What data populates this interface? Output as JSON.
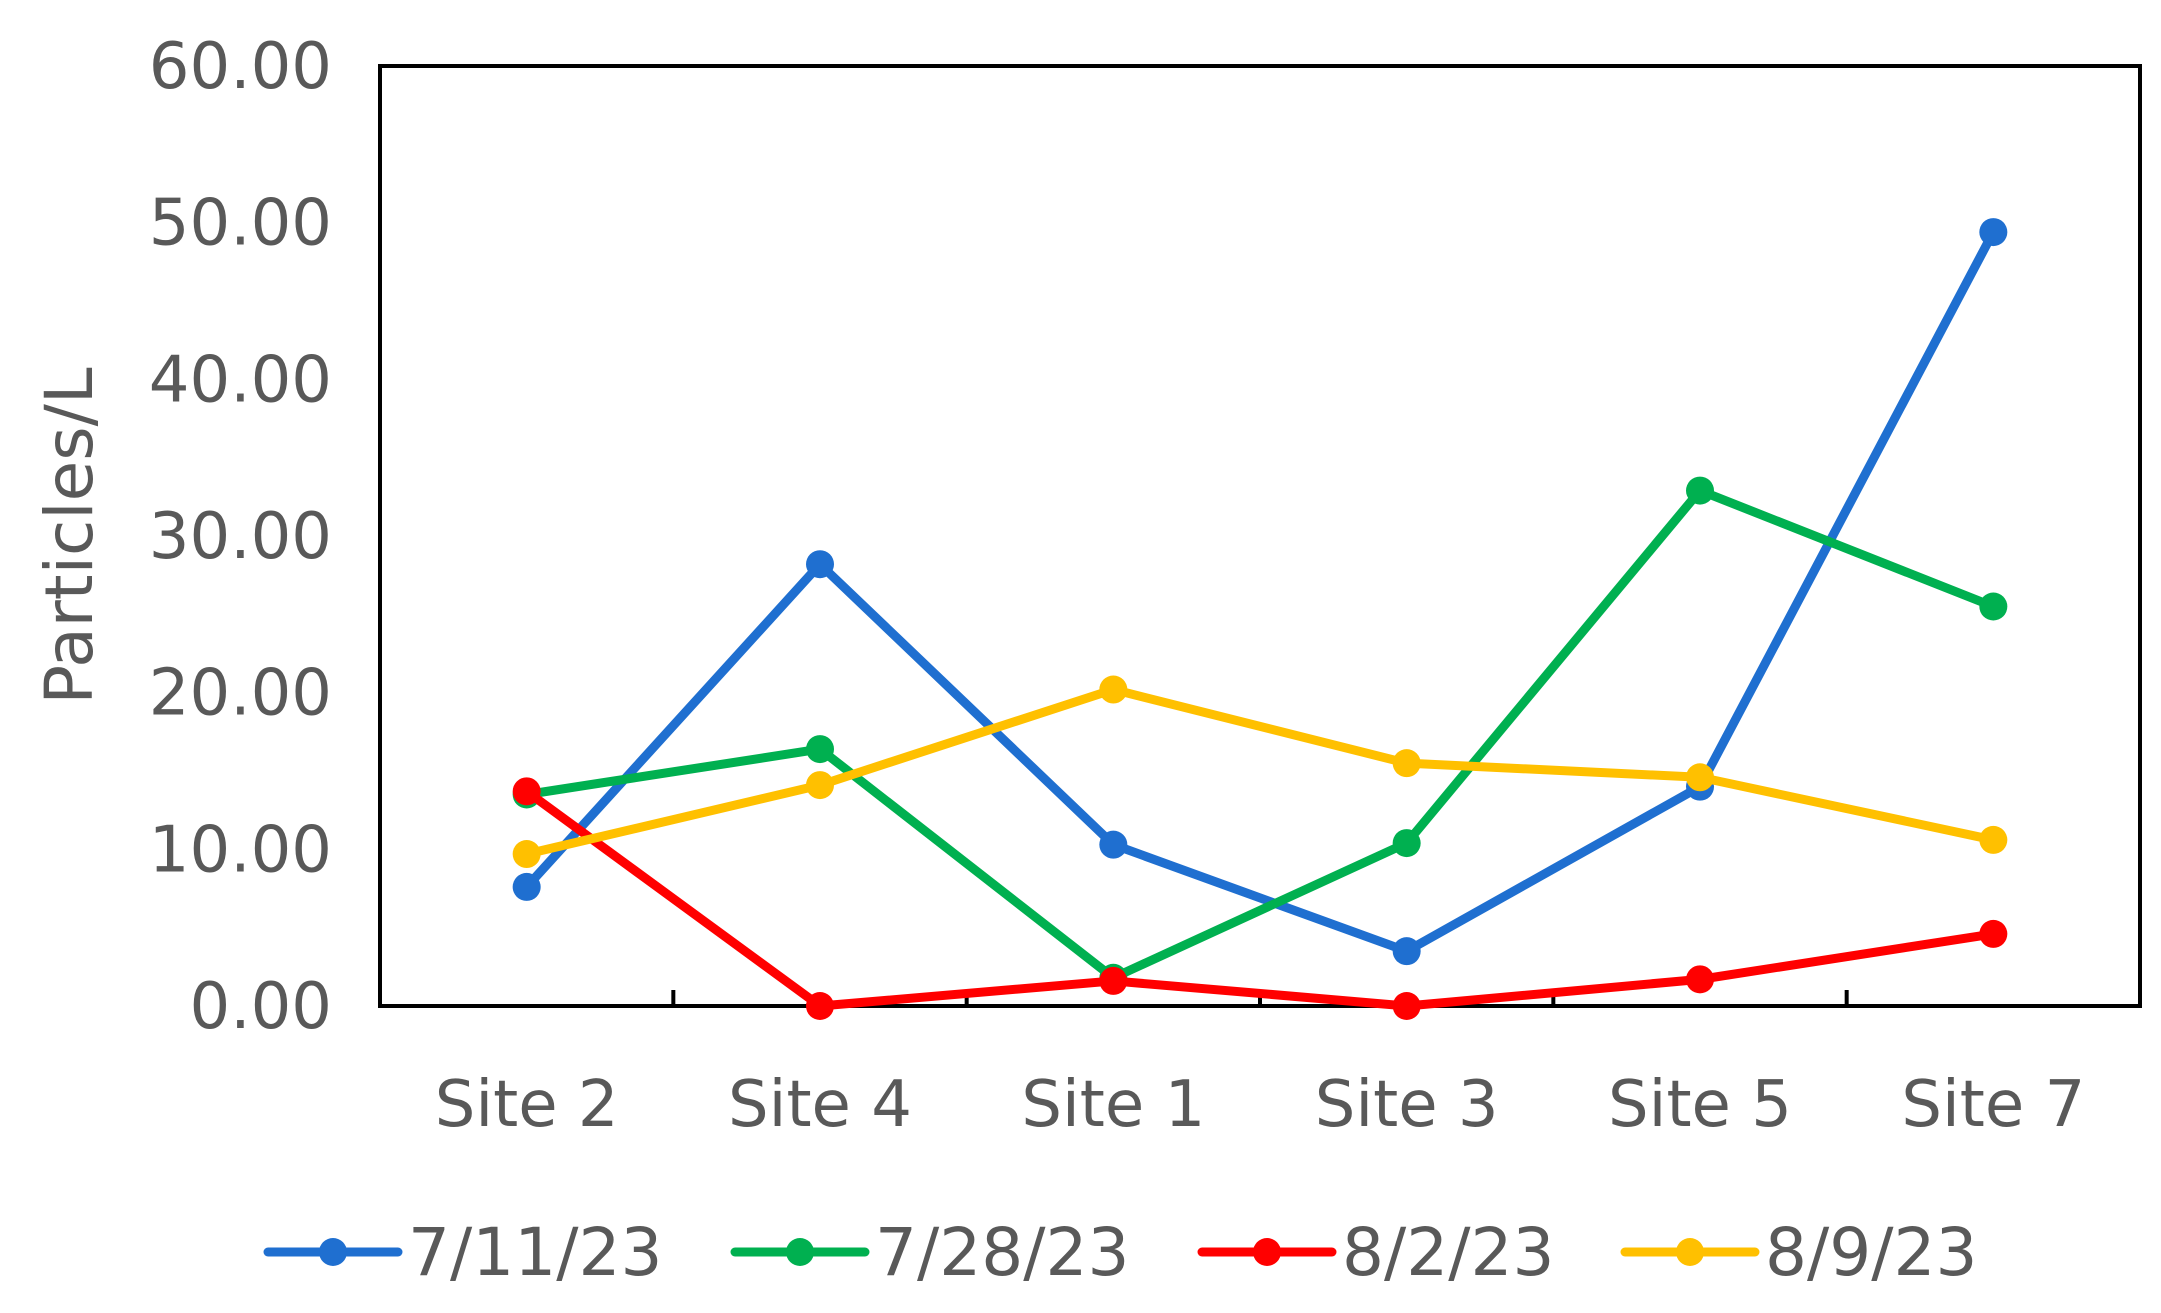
{
  "chart_data": {
    "type": "line",
    "title": "",
    "xlabel": "",
    "ylabel": "Particles/L",
    "categories": [
      "Site 2",
      "Site 4",
      "Site 1",
      "Site 3",
      "Site 5",
      "Site 7"
    ],
    "ylim": [
      0,
      60
    ],
    "yticks": [
      "0.00",
      "10.00",
      "20.00",
      "30.00",
      "40.00",
      "50.00",
      "60.00"
    ],
    "grid": false,
    "legend": "bottom",
    "series": [
      {
        "name": "7/11/23",
        "color": "#1F6FD0",
        "values": [
          7.6,
          28.2,
          10.3,
          3.5,
          14.0,
          49.4
        ]
      },
      {
        "name": "7/28/23",
        "color": "#00B050",
        "values": [
          13.5,
          16.4,
          1.8,
          10.4,
          32.9,
          25.5
        ]
      },
      {
        "name": "8/2/23",
        "color": "#FF0000",
        "values": [
          13.7,
          0.0,
          1.6,
          0.0,
          1.7,
          4.6
        ]
      },
      {
        "name": "8/9/23",
        "color": "#FFC000",
        "values": [
          9.7,
          14.1,
          20.2,
          15.5,
          14.6,
          10.6
        ]
      }
    ]
  }
}
